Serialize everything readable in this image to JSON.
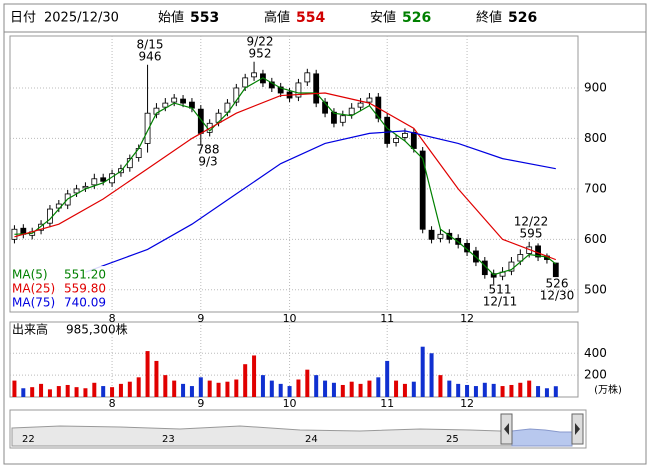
{
  "header": {
    "date_label": "日付",
    "date": "2025/12/30",
    "fields": [
      {
        "name": "始値",
        "value": 553,
        "color": "#000000"
      },
      {
        "name": "高値",
        "value": 554,
        "color": "#d00000"
      },
      {
        "name": "安値",
        "value": 526,
        "color": "#008000"
      },
      {
        "name": "終値",
        "value": 526,
        "color": "#000000"
      }
    ]
  },
  "chart_data": [
    {
      "type": "candlestick",
      "categories": [
        null,
        null,
        null,
        null,
        null,
        null,
        null,
        null,
        null,
        null,
        null,
        "8",
        null,
        null,
        null,
        null,
        null,
        null,
        null,
        null,
        null,
        "9",
        null,
        null,
        null,
        null,
        null,
        null,
        null,
        null,
        null,
        "10",
        null,
        null,
        null,
        null,
        null,
        null,
        null,
        null,
        null,
        null,
        "11",
        null,
        null,
        null,
        null,
        null,
        null,
        null,
        null,
        "12",
        null,
        null,
        null,
        null,
        null,
        null,
        null,
        null,
        null,
        null
      ],
      "open": [
        600,
        622,
        608,
        618,
        632,
        662,
        668,
        692,
        702,
        708,
        722,
        712,
        732,
        742,
        762,
        790,
        848,
        862,
        872,
        878,
        872,
        858,
        812,
        832,
        852,
        872,
        902,
        922,
        928,
        912,
        902,
        892,
        882,
        912,
        928,
        872,
        852,
        832,
        847,
        862,
        872,
        882,
        842,
        792,
        802,
        812,
        775,
        618,
        602,
        612,
        602,
        592,
        577,
        557,
        532,
        527,
        537,
        557,
        572,
        587,
        567,
        553
      ],
      "high": [
        628,
        630,
        623,
        638,
        668,
        678,
        698,
        708,
        713,
        730,
        730,
        738,
        748,
        768,
        788,
        946,
        870,
        880,
        888,
        886,
        880,
        866,
        838,
        858,
        878,
        908,
        928,
        952,
        936,
        920,
        910,
        900,
        918,
        938,
        936,
        880,
        860,
        855,
        870,
        880,
        890,
        890,
        850,
        808,
        820,
        820,
        783,
        626,
        620,
        620,
        610,
        600,
        585,
        565,
        540,
        545,
        565,
        580,
        595,
        592,
        572,
        554
      ],
      "low": [
        592,
        602,
        600,
        610,
        624,
        654,
        660,
        684,
        694,
        700,
        707,
        704,
        724,
        734,
        754,
        772,
        840,
        854,
        864,
        862,
        852,
        788,
        804,
        824,
        844,
        864,
        894,
        914,
        902,
        892,
        882,
        872,
        874,
        904,
        862,
        842,
        822,
        824,
        839,
        854,
        864,
        832,
        782,
        784,
        794,
        772,
        612,
        592,
        594,
        592,
        582,
        567,
        547,
        522,
        511,
        519,
        529,
        549,
        564,
        557,
        552,
        526
      ],
      "close": [
        620,
        610,
        615,
        630,
        660,
        670,
        690,
        700,
        705,
        720,
        715,
        730,
        740,
        760,
        780,
        850,
        860,
        870,
        880,
        870,
        860,
        810,
        830,
        850,
        870,
        900,
        920,
        930,
        910,
        900,
        890,
        880,
        910,
        930,
        870,
        850,
        830,
        845,
        860,
        870,
        880,
        840,
        790,
        800,
        810,
        780,
        620,
        600,
        610,
        600,
        590,
        575,
        555,
        530,
        525,
        535,
        555,
        570,
        585,
        565,
        560,
        526
      ],
      "up_color": "#ffffff",
      "down_color": "#000000",
      "ylim": [
        456,
        1003
      ],
      "yticks": [
        500,
        600,
        700,
        800,
        900
      ],
      "grid": true,
      "series": [
        {
          "name": "MA(5)",
          "color": "#008000",
          "last": {
            "value": 551.2,
            "label": "551.20"
          },
          "x": [
            0,
            2,
            4,
            6,
            8,
            10,
            12,
            14,
            16,
            18,
            20,
            22,
            24,
            26,
            28,
            30,
            32,
            34,
            36,
            38,
            40,
            42,
            44,
            46,
            48,
            50,
            52,
            54,
            56,
            58,
            60,
            61
          ],
          "values": [
            610,
            612,
            640,
            680,
            700,
            712,
            735,
            780,
            850,
            870,
            860,
            815,
            850,
            900,
            920,
            900,
            890,
            890,
            850,
            845,
            865,
            820,
            795,
            760,
            620,
            595,
            565,
            530,
            540,
            570,
            565,
            551.2
          ]
        },
        {
          "name": "MA(25)",
          "color": "#e00000",
          "last": {
            "value": 559.8,
            "label": "559.80"
          },
          "x": [
            0,
            5,
            10,
            15,
            20,
            25,
            30,
            35,
            40,
            45,
            50,
            55,
            61
          ],
          "values": [
            605,
            630,
            680,
            740,
            800,
            850,
            885,
            890,
            870,
            820,
            700,
            600,
            559.8
          ]
        },
        {
          "name": "MA(75)",
          "color": "#0000e0",
          "last": {
            "value": 740.09,
            "label": "740.09"
          },
          "x": [
            8,
            15,
            20,
            25,
            30,
            35,
            40,
            44,
            50,
            55,
            61
          ],
          "values": [
            535,
            580,
            630,
            690,
            750,
            790,
            810,
            815,
            790,
            760,
            740.09
          ]
        }
      ],
      "annotations": [
        {
          "date": "8/15",
          "value": 946
        },
        {
          "date": "9/3",
          "value": 788
        },
        {
          "date": "9/22",
          "value": 952
        },
        {
          "date": "12/22",
          "value": 595
        },
        {
          "date": "12/11",
          "value": 511
        },
        {
          "date": "12/30",
          "value": 526
        }
      ]
    },
    {
      "type": "bar",
      "title": "出来高",
      "latest": {
        "value": 985300,
        "label": "985,300株"
      },
      "unit": "(万株)",
      "categories": [
        null,
        null,
        null,
        null,
        null,
        null,
        null,
        null,
        null,
        null,
        null,
        "8",
        null,
        null,
        null,
        null,
        null,
        null,
        null,
        null,
        null,
        "9",
        null,
        null,
        null,
        null,
        null,
        null,
        null,
        null,
        null,
        "10",
        null,
        null,
        null,
        null,
        null,
        null,
        null,
        null,
        null,
        null,
        "11",
        null,
        null,
        null,
        null,
        null,
        null,
        null,
        null,
        "12",
        null,
        null,
        null,
        null,
        null,
        null,
        null,
        null,
        null,
        null
      ],
      "values": [
        150,
        80,
        90,
        120,
        70,
        100,
        110,
        90,
        80,
        130,
        100,
        90,
        120,
        140,
        180,
        420,
        330,
        200,
        150,
        120,
        100,
        180,
        150,
        130,
        140,
        160,
        300,
        380,
        200,
        150,
        120,
        100,
        160,
        250,
        200,
        150,
        130,
        110,
        140,
        120,
        150,
        180,
        330,
        150,
        120,
        140,
        460,
        400,
        200,
        150,
        120,
        110,
        100,
        130,
        120,
        100,
        110,
        130,
        150,
        100,
        80,
        98.53
      ],
      "up_color": "#e00000",
      "down_color": "#1030d0",
      "ylim": [
        0,
        686
      ],
      "yticks": [
        200,
        400
      ],
      "grid": true
    }
  ],
  "navigator": {
    "labels": [
      "22",
      "23",
      "24",
      "25"
    ]
  }
}
